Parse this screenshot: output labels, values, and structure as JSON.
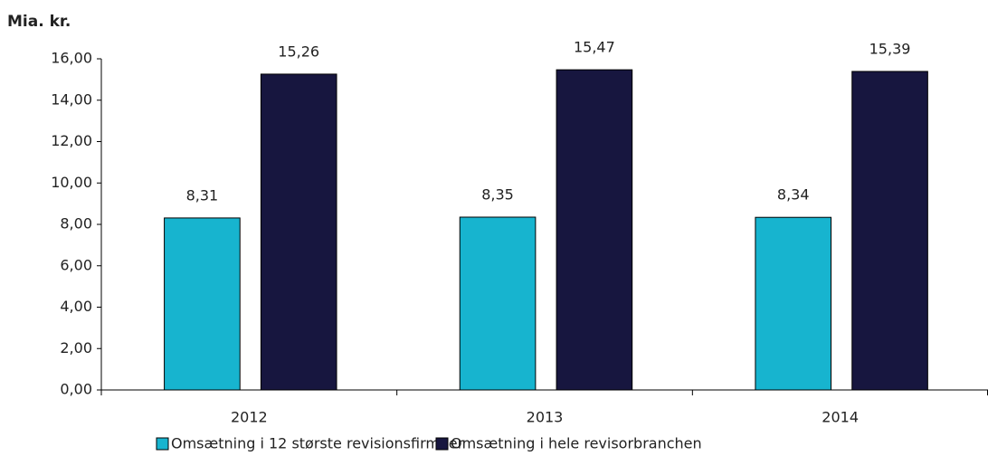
{
  "chart_data": {
    "type": "bar",
    "ylabel": "Mia. kr.",
    "categories": [
      "2012",
      "2013",
      "2014"
    ],
    "series": [
      {
        "name": "Omsætning i 12 største revisionsfirmaer",
        "color": "#17b4cf",
        "values": [
          8.31,
          8.35,
          8.34
        ],
        "value_labels": [
          "8,31",
          "8,35",
          "8,34"
        ]
      },
      {
        "name": "Omsætning i hele revisorbranchen",
        "color": "#17163f",
        "values": [
          15.26,
          15.47,
          15.39
        ],
        "value_labels": [
          "15,26",
          "15,47",
          "15,39"
        ]
      }
    ],
    "ylim": [
      0,
      16
    ],
    "yticks": [
      {
        "value": 0,
        "label": "0,00"
      },
      {
        "value": 2,
        "label": "2,00"
      },
      {
        "value": 4,
        "label": "4,00"
      },
      {
        "value": 6,
        "label": "6,00"
      },
      {
        "value": 8,
        "label": "8,00"
      },
      {
        "value": 10,
        "label": "10,00"
      },
      {
        "value": 12,
        "label": "12,00"
      },
      {
        "value": 14,
        "label": "14,00"
      },
      {
        "value": 16,
        "label": "16,00"
      }
    ],
    "grid": false,
    "legend": "bottom"
  }
}
